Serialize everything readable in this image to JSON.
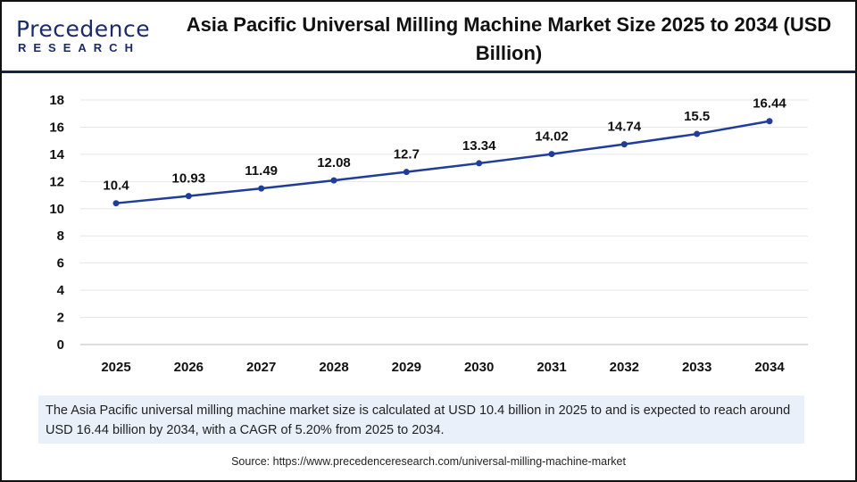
{
  "logo": {
    "line1": "Precedence",
    "line2": "RESEARCH"
  },
  "title": "Asia Pacific Universal Milling Machine Market Size 2025 to 2034 (USD Billion)",
  "chart_data": {
    "type": "line",
    "title": "Asia Pacific Universal Milling Machine Market Size 2025 to 2034 (USD Billion)",
    "categories": [
      "2025",
      "2026",
      "2027",
      "2028",
      "2029",
      "2030",
      "2031",
      "2032",
      "2033",
      "2034"
    ],
    "values": [
      10.4,
      10.93,
      11.49,
      12.08,
      12.7,
      13.34,
      14.02,
      14.74,
      15.5,
      16.44
    ],
    "data_labels": [
      "10.4",
      "10.93",
      "11.49",
      "12.08",
      "12.7",
      "13.34",
      "14.02",
      "14.74",
      "15.5",
      "16.44"
    ],
    "yticks": [
      0,
      2,
      4,
      6,
      8,
      10,
      12,
      14,
      16,
      18
    ],
    "ylim": [
      0,
      18
    ],
    "grid": true,
    "line_color": "#1f3d99"
  },
  "note": "The Asia Pacific universal milling machine market size is calculated at USD 10.4 billion in 2025 to and is expected to reach around USD 16.44 billion by 2034, with a CAGR of 5.20% from 2025 to 2034.",
  "source": "Source: https://www.precedenceresearch.com/universal-milling-machine-market"
}
